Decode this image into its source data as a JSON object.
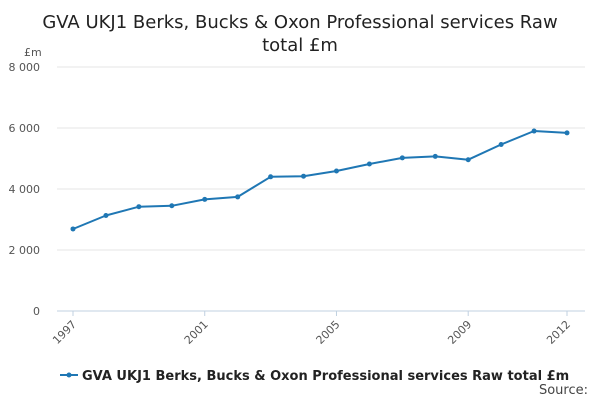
{
  "title_line1": "GVA UKJ1 Berks, Bucks & Oxon Professional services Raw",
  "title_line2": "total £m",
  "y_unit": "£m",
  "source_label": "Source:",
  "legend_label": "GVA UKJ1 Berks, Bucks & Oxon Professional services Raw total £m",
  "series_color": "#1f77b4",
  "chart_data": {
    "type": "line",
    "title": "GVA UKJ1 Berks, Bucks & Oxon Professional services Raw total £m",
    "xlabel": "",
    "ylabel": "£m",
    "x": [
      1997,
      1998,
      1999,
      2000,
      2001,
      2002,
      2003,
      2004,
      2005,
      2006,
      2007,
      2008,
      2009,
      2010,
      2011,
      2012
    ],
    "series": [
      {
        "name": "GVA UKJ1 Berks, Bucks & Oxon Professional services Raw total £m",
        "values": [
          2690,
          3130,
          3420,
          3450,
          3660,
          3740,
          4400,
          4420,
          4590,
          4820,
          5020,
          5070,
          4960,
          5460,
          5900,
          5840
        ]
      }
    ],
    "ylim": [
      0,
      8000
    ],
    "y_ticks": [
      0,
      2000,
      4000,
      6000,
      8000
    ],
    "y_tick_labels": [
      "0",
      "2 000",
      "4 000",
      "6 000",
      "8 000"
    ],
    "x_ticks": [
      1997,
      2001,
      2005,
      2009,
      2012
    ],
    "x_tick_labels": [
      "1997",
      "2001",
      "2005",
      "2009",
      "2012"
    ],
    "grid": true,
    "legend_position": "bottom-left"
  }
}
